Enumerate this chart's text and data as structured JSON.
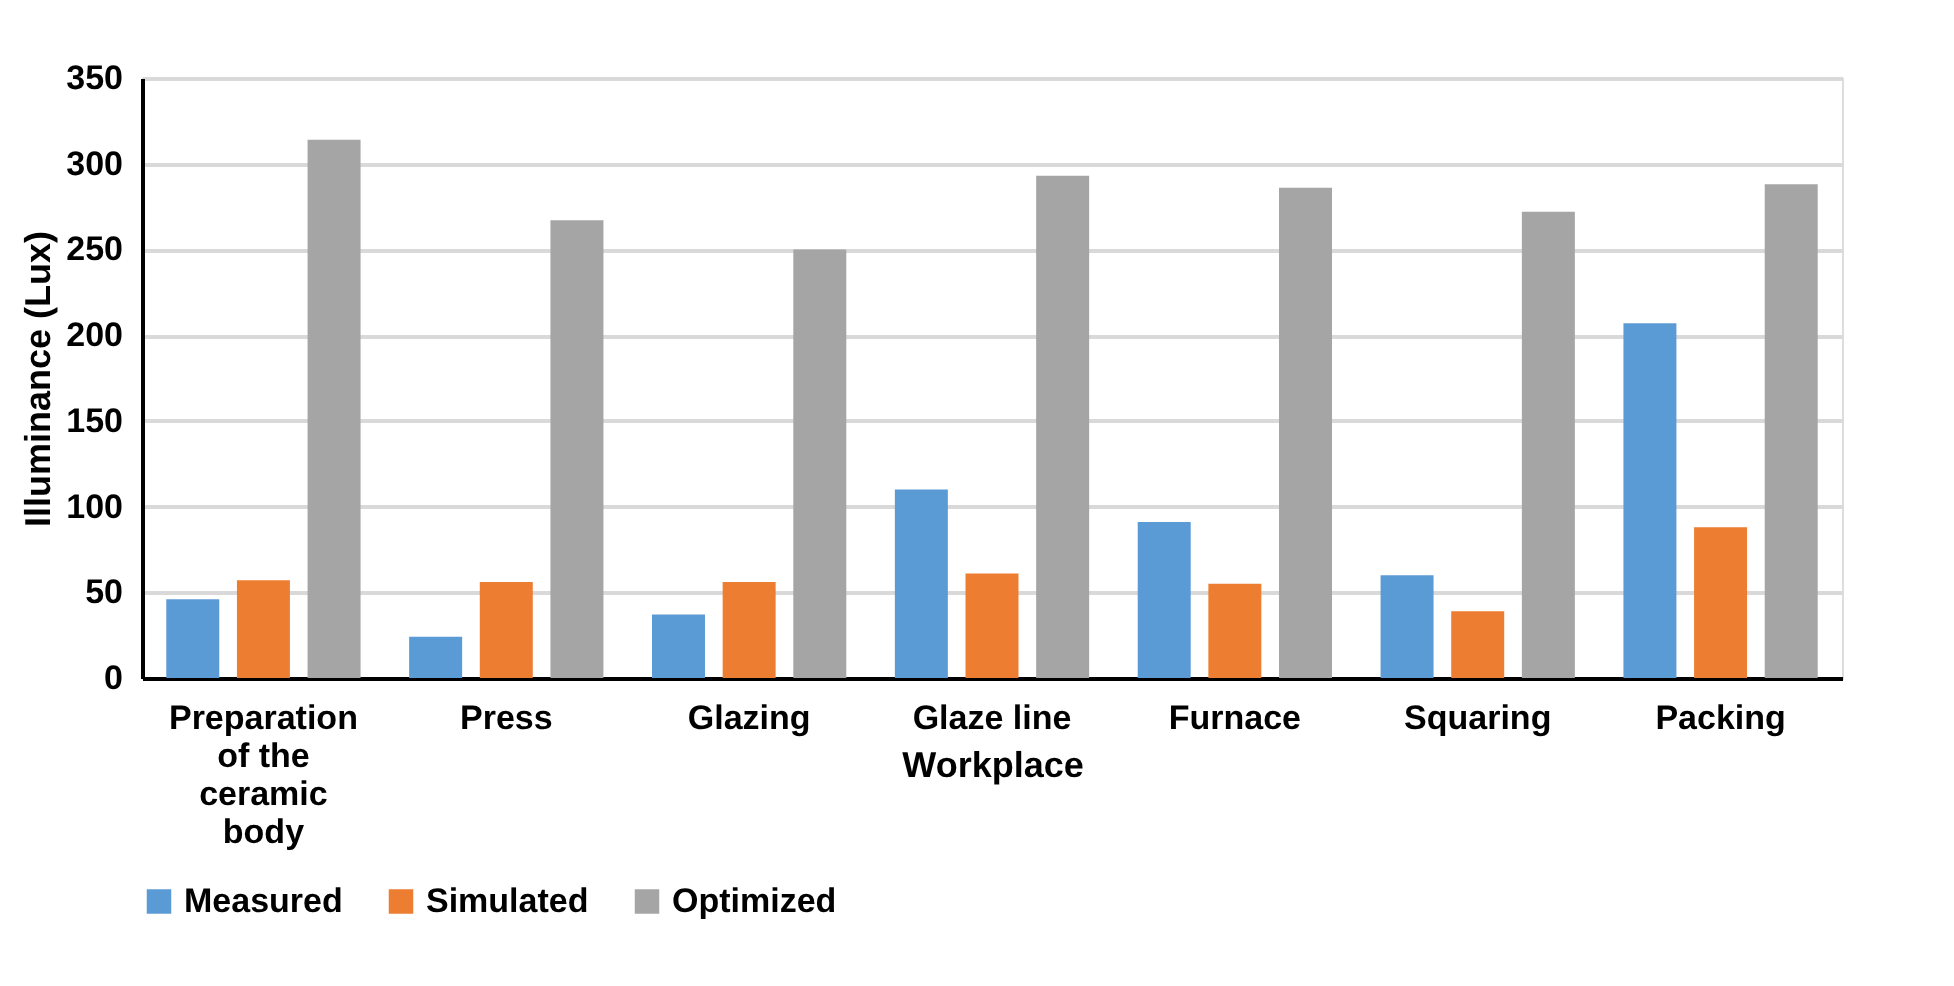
{
  "chart_data": {
    "type": "bar",
    "xlabel": "Workplace",
    "ylabel": "Illuminance (Lux)",
    "categories": [
      "Preparation of the ceramic body",
      "Press",
      "Glazing",
      "Glaze line",
      "Furnace",
      "Squaring",
      "Packing"
    ],
    "series": [
      {
        "name": "Measured",
        "color": "#5b9bd5",
        "values": [
          46,
          24,
          37,
          110,
          91,
          60,
          207
        ]
      },
      {
        "name": "Simulated",
        "color": "#ed7d31",
        "values": [
          57,
          56,
          56,
          61,
          55,
          39,
          88
        ]
      },
      {
        "name": "Optimized",
        "color": "#a5a5a5",
        "values": [
          314,
          267,
          250,
          293,
          286,
          272,
          288
        ]
      }
    ],
    "ylim": [
      0,
      350
    ],
    "yticks": [
      0,
      50,
      100,
      150,
      200,
      250,
      300,
      350
    ],
    "grid": "y",
    "legend": "bottom"
  }
}
